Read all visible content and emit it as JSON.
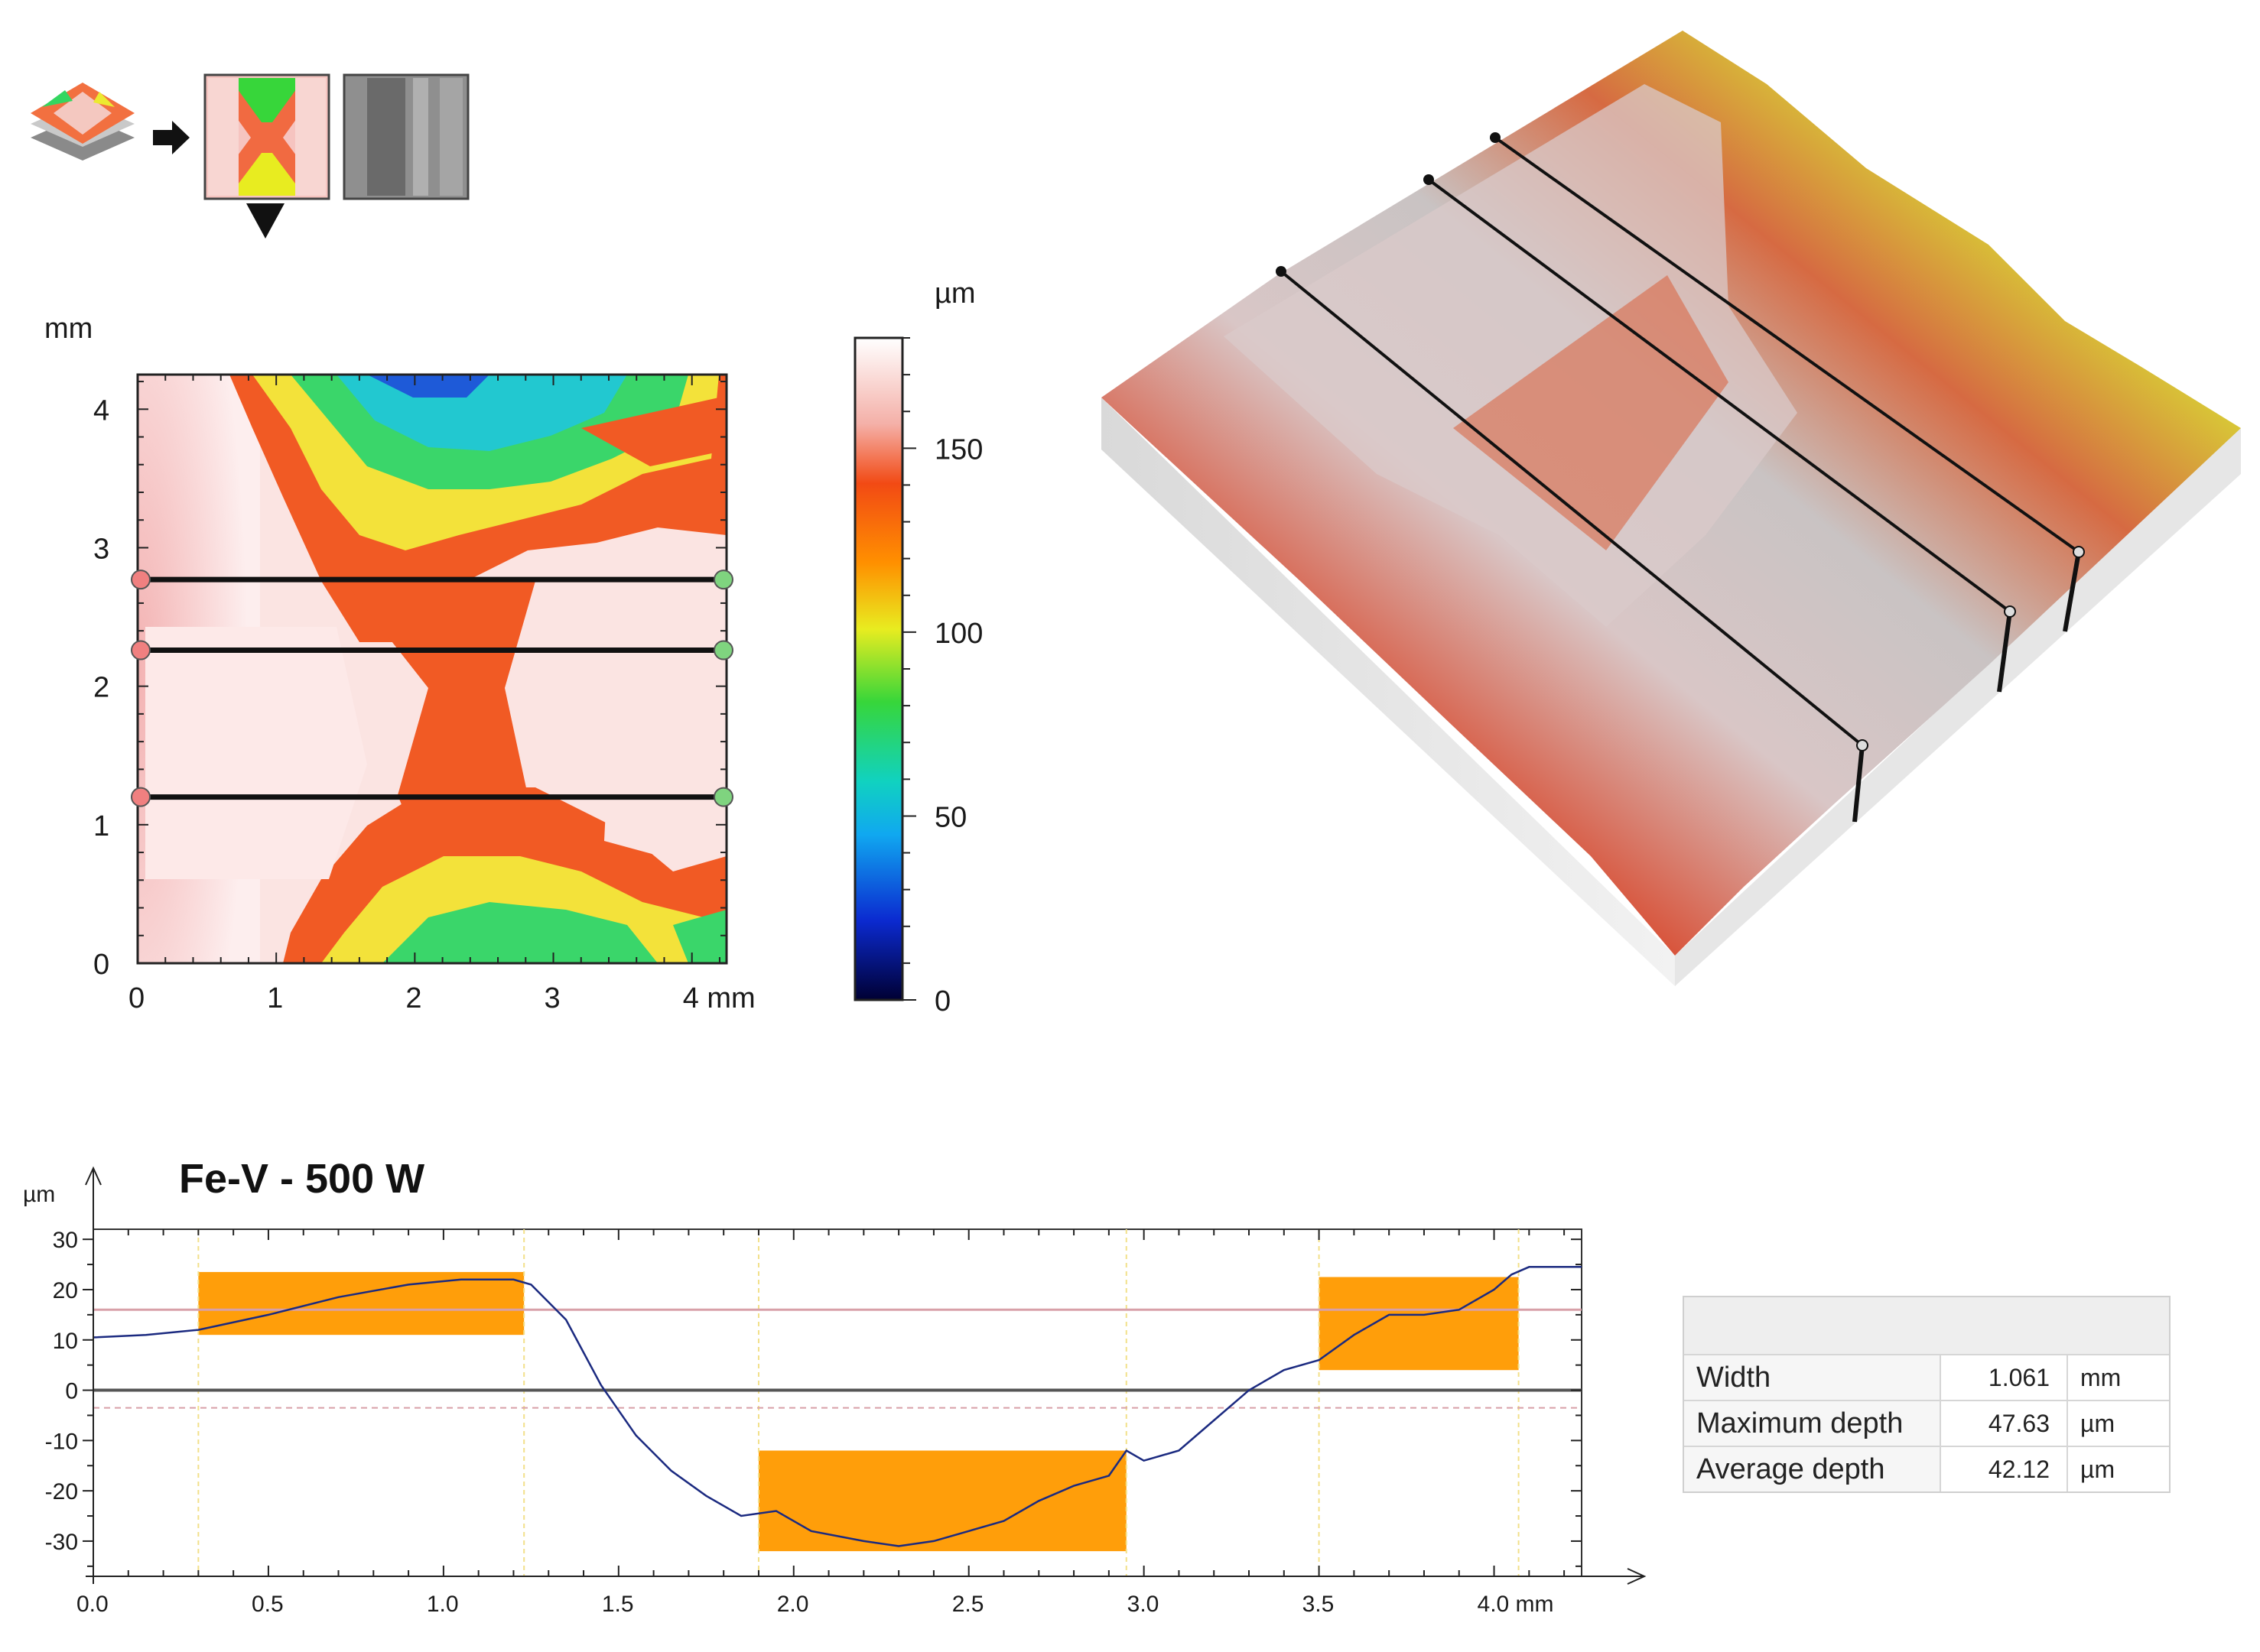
{
  "chart_data": [
    {
      "type": "heatmap",
      "title": "",
      "xlabel": "mm",
      "ylabel": "mm",
      "xlim": [
        0,
        4.25
      ],
      "ylim": [
        0,
        4.25
      ],
      "x_ticks": [
        "0",
        "1",
        "2",
        "3",
        "4 mm"
      ],
      "y_ticks": [
        "0",
        "1",
        "2",
        "3",
        "4"
      ],
      "profile_lines_y_mm": [
        2.77,
        2.26,
        1.2
      ],
      "colorbar": {
        "unit": "µm",
        "range": [
          0,
          180
        ],
        "ticks": [
          "0",
          "50",
          "100",
          "150"
        ]
      }
    },
    {
      "type": "line",
      "title": "Fe-V - 500 W",
      "xlabel": "mm",
      "ylabel": "µm",
      "xlim": [
        0,
        4.25
      ],
      "ylim": [
        -37,
        32
      ],
      "x_ticks": [
        "0.0",
        "0.5",
        "1.0",
        "1.5",
        "2.0",
        "2.5",
        "3.0",
        "3.5",
        "4.0 mm"
      ],
      "y_ticks": [
        "30",
        "20",
        "10",
        "0",
        "-10",
        "-20",
        "-30"
      ],
      "x": [
        0,
        0.15,
        0.3,
        0.5,
        0.7,
        0.9,
        1.05,
        1.2,
        1.25,
        1.35,
        1.45,
        1.55,
        1.65,
        1.75,
        1.85,
        1.95,
        2.05,
        2.2,
        2.3,
        2.4,
        2.5,
        2.6,
        2.7,
        2.8,
        2.9,
        2.95,
        3.0,
        3.1,
        3.2,
        3.3,
        3.4,
        3.5,
        3.6,
        3.7,
        3.8,
        3.9,
        4.0,
        4.05,
        4.1,
        4.25
      ],
      "y": [
        10.5,
        11,
        12,
        15,
        18.5,
        21,
        22,
        22,
        21,
        14,
        1,
        -9,
        -16,
        -21,
        -25,
        -24,
        -28,
        -30,
        -31,
        -30,
        -28,
        -26,
        -22,
        -19,
        -17,
        -12,
        -14,
        -12,
        -6,
        0,
        4,
        6,
        11,
        15,
        15,
        16,
        20,
        23,
        24.5,
        24.5
      ],
      "reference_lines": [
        16,
        -3.5
      ],
      "highlight_regions": [
        {
          "x": [
            0.3,
            1.23
          ],
          "y": [
            11,
            23.5
          ]
        },
        {
          "x": [
            1.9,
            2.95
          ],
          "y": [
            -32,
            -12
          ]
        },
        {
          "x": [
            3.5,
            4.07
          ],
          "y": [
            4,
            22.5
          ]
        }
      ],
      "vertical_markers": [
        0.3,
        1.23,
        1.9,
        2.95,
        3.5,
        4.07
      ]
    }
  ],
  "results_table": {
    "rows": [
      {
        "label": "Width",
        "value": "1.061",
        "unit": "mm"
      },
      {
        "label": "Maximum depth",
        "value": "47.63",
        "unit": "µm"
      },
      {
        "label": "Average depth",
        "value": "42.12",
        "unit": "µm"
      }
    ]
  },
  "colors": {
    "orange": "#ff9e0a",
    "profile_line": "#1b2a80",
    "ref_line": "#d8a0a8"
  }
}
